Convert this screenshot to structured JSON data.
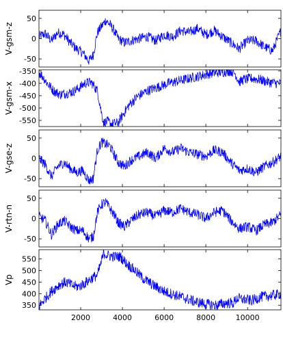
{
  "chart_data": [
    {
      "type": "line",
      "ylabel": "V-gsm-z",
      "xlim": [
        0,
        11600
      ],
      "ylim": [
        -70,
        70
      ],
      "yticks": [
        50,
        0,
        -50
      ],
      "color": "#0000ff",
      "x": [
        0,
        300,
        600,
        900,
        1200,
        1500,
        1800,
        2100,
        2400,
        2600,
        2800,
        3000,
        3200,
        3400,
        3600,
        3800,
        4100,
        4400,
        4800,
        5200,
        5600,
        6000,
        6400,
        6800,
        7200,
        7600,
        8000,
        8400,
        8800,
        9200,
        9600,
        10000,
        10400,
        10800,
        11200,
        11600
      ],
      "y": [
        5,
        12,
        -5,
        15,
        10,
        -10,
        -25,
        -35,
        -55,
        -40,
        15,
        30,
        45,
        35,
        20,
        0,
        -10,
        -5,
        0,
        5,
        -5,
        10,
        5,
        20,
        15,
        25,
        10,
        20,
        5,
        -10,
        -25,
        -5,
        -5,
        -20,
        -30,
        20
      ]
    },
    {
      "type": "line",
      "ylabel": "V-gsm-x",
      "xlim": [
        0,
        11600
      ],
      "ylim": [
        -575,
        -345
      ],
      "yticks": [
        -350,
        -400,
        -450,
        -500,
        -550
      ],
      "color": "#0000ff",
      "x": [
        0,
        200,
        400,
        700,
        1000,
        1300,
        1600,
        1900,
        2200,
        2500,
        2800,
        3000,
        3100,
        3300,
        3500,
        3800,
        4000,
        4300,
        4700,
        5200,
        5700,
        6200,
        6700,
        7200,
        7700,
        8200,
        8700,
        9200,
        9400,
        9600,
        9800,
        10200,
        10600,
        11000,
        11400,
        11600
      ],
      "y": [
        -355,
        -375,
        -400,
        -430,
        -445,
        -440,
        -435,
        -420,
        -400,
        -395,
        -430,
        -520,
        -560,
        -555,
        -565,
        -560,
        -530,
        -490,
        -455,
        -430,
        -415,
        -400,
        -390,
        -380,
        -370,
        -360,
        -355,
        -350,
        -360,
        -395,
        -385,
        -380,
        -385,
        -395,
        -400,
        -400
      ]
    },
    {
      "type": "line",
      "ylabel": "V-gse-z",
      "xlim": [
        0,
        11600
      ],
      "ylim": [
        -70,
        70
      ],
      "yticks": [
        50,
        0,
        -50
      ],
      "color": "#0000ff",
      "x": [
        0,
        300,
        600,
        900,
        1200,
        1500,
        1800,
        2100,
        2400,
        2600,
        2800,
        3000,
        3200,
        3400,
        3600,
        3800,
        4100,
        4400,
        4800,
        5200,
        5600,
        6000,
        6400,
        6800,
        7200,
        7600,
        8000,
        8400,
        8800,
        9200,
        9600,
        10000,
        10400,
        10800,
        11200,
        11600
      ],
      "y": [
        0,
        -15,
        -45,
        -20,
        -10,
        -25,
        -35,
        -30,
        -55,
        -50,
        20,
        40,
        35,
        30,
        10,
        -10,
        -20,
        -5,
        5,
        15,
        0,
        25,
        15,
        25,
        15,
        10,
        5,
        20,
        15,
        -10,
        -30,
        -25,
        -35,
        -20,
        -10,
        5
      ]
    },
    {
      "type": "line",
      "ylabel": "V-rtn-n",
      "xlim": [
        0,
        11600
      ],
      "ylim": [
        -70,
        70
      ],
      "yticks": [
        50,
        0,
        -50
      ],
      "color": "#0000ff",
      "x": [
        0,
        300,
        600,
        900,
        1200,
        1500,
        1800,
        2100,
        2400,
        2600,
        2800,
        3000,
        3200,
        3400,
        3600,
        3800,
        4100,
        4400,
        4800,
        5200,
        5600,
        6000,
        6400,
        6800,
        7200,
        7600,
        8000,
        8400,
        8800,
        9200,
        9600,
        10000,
        10400,
        10800,
        11200,
        11600
      ],
      "y": [
        5,
        -5,
        -40,
        -15,
        -5,
        -20,
        -30,
        -30,
        -50,
        -45,
        15,
        35,
        40,
        25,
        10,
        -10,
        -20,
        -5,
        10,
        15,
        5,
        20,
        15,
        25,
        15,
        10,
        0,
        15,
        20,
        -5,
        -25,
        -20,
        -30,
        -15,
        -10,
        10
      ]
    },
    {
      "type": "line",
      "ylabel": "Vp",
      "xlim": [
        0,
        11600
      ],
      "ylim": [
        330,
        590
      ],
      "yticks": [
        550,
        500,
        450,
        400,
        350
      ],
      "xticks": [
        2000,
        4000,
        6000,
        8000,
        10000
      ],
      "color": "#0000ff",
      "x": [
        0,
        300,
        600,
        1000,
        1300,
        1600,
        1900,
        2200,
        2500,
        2800,
        3000,
        3100,
        3300,
        3600,
        3900,
        4200,
        4600,
        5000,
        5500,
        6000,
        6500,
        7000,
        7500,
        8000,
        8500,
        9000,
        9300,
        9500,
        9800,
        10200,
        10600,
        11000,
        11400,
        11600
      ],
      "y": [
        345,
        380,
        410,
        440,
        450,
        435,
        430,
        445,
        465,
        480,
        540,
        575,
        565,
        560,
        560,
        530,
        500,
        465,
        435,
        410,
        395,
        380,
        365,
        355,
        350,
        360,
        358,
        380,
        375,
        370,
        385,
        390,
        395,
        400
      ]
    }
  ]
}
